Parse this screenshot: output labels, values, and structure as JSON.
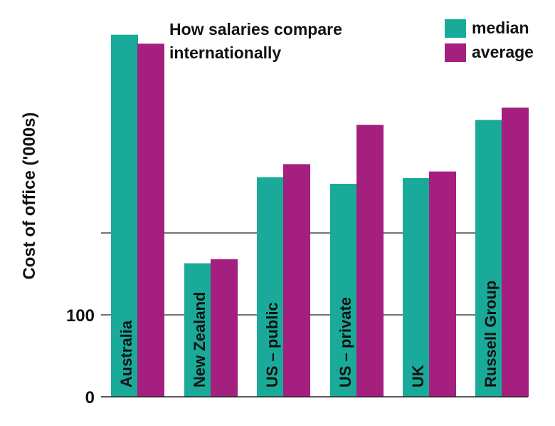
{
  "chart_data": {
    "type": "bar",
    "title": "How salaries compare internationally",
    "title_lines": [
      "How salaries compare",
      "internationally"
    ],
    "xlabel": "",
    "ylabel": "Cost of office ('000s)",
    "ylim": [
      0,
      500
    ],
    "yticks": [
      0,
      100,
      200
    ],
    "ytick_labels": [
      "0",
      "100",
      ""
    ],
    "grid": true,
    "legend_position": "top-right",
    "categories": [
      "Australia",
      "New Zealand",
      "US – public",
      "US – private",
      "UK",
      "Russell Group"
    ],
    "series": [
      {
        "name": "median",
        "color": "#1aaa9a",
        "values": [
          442,
          163,
          268,
          260,
          267,
          338
        ]
      },
      {
        "name": "average",
        "color": "#a51f7f",
        "values": [
          431,
          168,
          284,
          332,
          275,
          353
        ]
      }
    ]
  }
}
